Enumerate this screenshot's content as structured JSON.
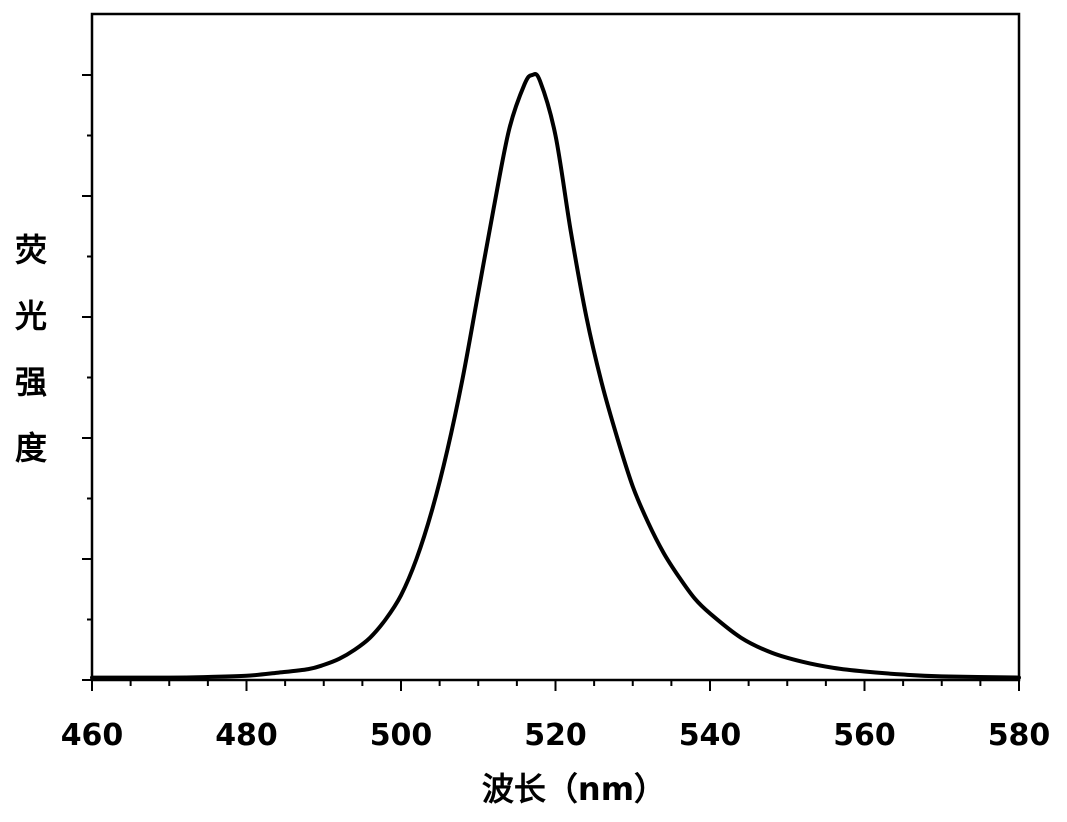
{
  "chart_data": {
    "type": "line",
    "title": "",
    "xlabel": "波长（nm）",
    "ylabel": "荧光强度",
    "xlim": [
      460,
      580
    ],
    "ylim": [
      0,
      1.0
    ],
    "x_ticks": [
      460,
      480,
      500,
      520,
      540,
      560,
      580
    ],
    "x_tick_labels": [
      "460",
      "480",
      "500",
      "520",
      "540",
      "560",
      "580"
    ],
    "y_tick_labels": [],
    "grid": false,
    "legend": "none",
    "line_color": "#000000",
    "series": [
      {
        "x": [
          460,
          470,
          475,
          480,
          484,
          488,
          490,
          492,
          494,
          496,
          498,
          500,
          502,
          504,
          506,
          508,
          510,
          512,
          514,
          516,
          517,
          518,
          520,
          522,
          524,
          526,
          528,
          530,
          532,
          534,
          536,
          538,
          540,
          544,
          548,
          552,
          556,
          560,
          565,
          570,
          580
        ],
        "y": [
          0.004,
          0.004,
          0.005,
          0.007,
          0.012,
          0.018,
          0.025,
          0.035,
          0.05,
          0.07,
          0.1,
          0.14,
          0.2,
          0.28,
          0.38,
          0.5,
          0.64,
          0.78,
          0.91,
          0.985,
          1.0,
          0.99,
          0.9,
          0.74,
          0.6,
          0.49,
          0.4,
          0.32,
          0.26,
          0.21,
          0.17,
          0.135,
          0.11,
          0.07,
          0.045,
          0.03,
          0.02,
          0.014,
          0.009,
          0.006,
          0.004
        ]
      }
    ]
  }
}
